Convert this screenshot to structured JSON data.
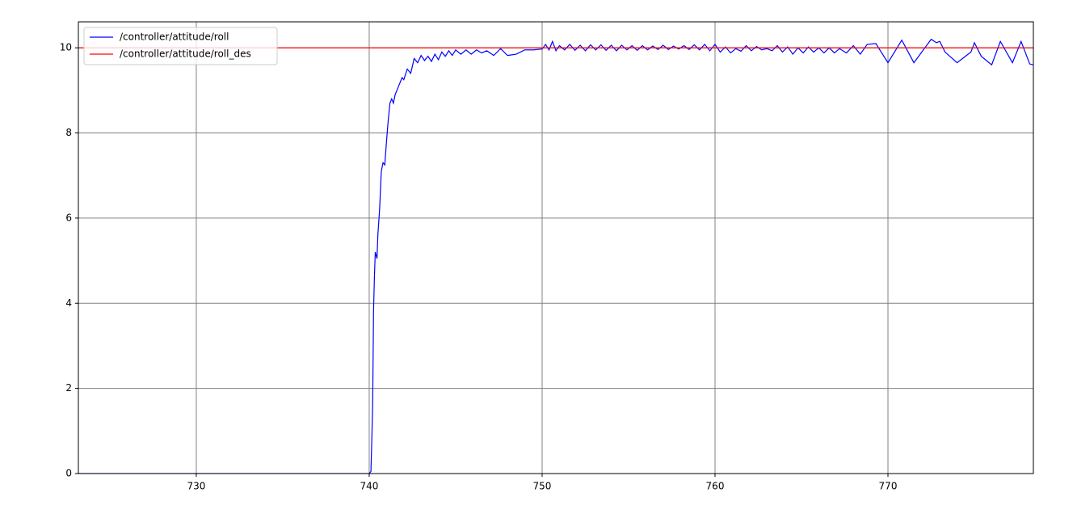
{
  "chart_data": {
    "type": "line",
    "xlim": [
      723.18,
      778.41
    ],
    "xticks": [
      730,
      740,
      750,
      760,
      770
    ],
    "ylim": [
      0,
      10.61
    ],
    "yticks": [
      0,
      2,
      4,
      6,
      8,
      10
    ],
    "grid": true,
    "legend": "upper-left",
    "series": [
      {
        "name": "/controller/attitude/roll",
        "color": "#0000ff",
        "x": [
          723.18,
          740.0,
          740.1,
          740.15,
          740.2,
          740.25,
          740.3,
          740.35,
          740.45,
          740.5,
          740.6,
          740.7,
          740.8,
          740.9,
          741.0,
          741.1,
          741.2,
          741.3,
          741.4,
          741.5,
          741.7,
          741.9,
          742.0,
          742.2,
          742.4,
          742.6,
          742.8,
          743.0,
          743.2,
          743.4,
          743.6,
          743.8,
          744.0,
          744.2,
          744.4,
          744.6,
          744.8,
          745.0,
          745.3,
          745.6,
          745.9,
          746.2,
          746.5,
          746.8,
          747.2,
          747.6,
          748.0,
          748.5,
          749.0,
          749.5,
          750.0,
          750.2,
          750.4,
          750.6,
          750.8,
          751.0,
          751.3,
          751.6,
          751.9,
          752.2,
          752.5,
          752.8,
          753.1,
          753.4,
          753.7,
          754.0,
          754.3,
          754.6,
          754.9,
          755.2,
          755.5,
          755.8,
          756.1,
          756.4,
          756.7,
          757.0,
          757.3,
          757.6,
          757.9,
          758.2,
          758.5,
          758.8,
          759.1,
          759.4,
          759.7,
          760.0,
          760.3,
          760.6,
          760.9,
          761.2,
          761.5,
          761.8,
          762.1,
          762.4,
          762.7,
          763.0,
          763.3,
          763.6,
          763.9,
          764.2,
          764.5,
          764.8,
          765.1,
          765.4,
          765.7,
          766.0,
          766.3,
          766.6,
          766.9,
          767.2,
          767.6,
          768.0,
          768.4,
          768.8,
          769.3,
          770.0,
          770.8,
          771.5,
          772.5,
          772.8,
          773.0,
          773.3,
          774.0,
          774.8,
          775.0,
          775.4,
          776.0,
          776.5,
          777.2,
          777.7,
          778.2,
          778.41
        ],
        "values": [
          0,
          0,
          0.05,
          0.8,
          1.6,
          3.8,
          4.6,
          5.2,
          5.05,
          5.6,
          6.2,
          7.1,
          7.3,
          7.25,
          7.8,
          8.3,
          8.7,
          8.8,
          8.7,
          8.9,
          9.1,
          9.3,
          9.25,
          9.5,
          9.4,
          9.75,
          9.65,
          9.82,
          9.7,
          9.8,
          9.68,
          9.85,
          9.72,
          9.9,
          9.8,
          9.93,
          9.82,
          9.95,
          9.85,
          9.95,
          9.85,
          9.95,
          9.88,
          9.93,
          9.82,
          9.98,
          9.82,
          9.85,
          9.95,
          9.95,
          9.97,
          10.08,
          9.95,
          10.15,
          9.93,
          10.05,
          9.95,
          10.08,
          9.94,
          10.06,
          9.93,
          10.07,
          9.95,
          10.07,
          9.94,
          10.06,
          9.93,
          10.06,
          9.95,
          10.05,
          9.94,
          10.05,
          9.95,
          10.04,
          9.96,
          10.06,
          9.96,
          10.04,
          9.97,
          10.05,
          9.96,
          10.07,
          9.95,
          10.08,
          9.93,
          10.08,
          9.9,
          10.02,
          9.88,
          9.98,
          9.92,
          10.05,
          9.93,
          10.03,
          9.95,
          9.98,
          9.93,
          10.05,
          9.9,
          10.02,
          9.85,
          10.0,
          9.88,
          10.02,
          9.9,
          10.0,
          9.88,
          10.0,
          9.88,
          9.98,
          9.88,
          10.05,
          9.85,
          10.08,
          10.1,
          9.65,
          10.18,
          9.65,
          10.2,
          10.12,
          10.15,
          9.9,
          9.65,
          9.9,
          10.12,
          9.8,
          9.6,
          10.15,
          9.65,
          10.15,
          9.62,
          9.6
        ]
      },
      {
        "name": "/controller/attitude/roll_des",
        "color": "#ff0000",
        "x": [
          723.18,
          778.41
        ],
        "values": [
          10,
          10
        ]
      }
    ]
  }
}
